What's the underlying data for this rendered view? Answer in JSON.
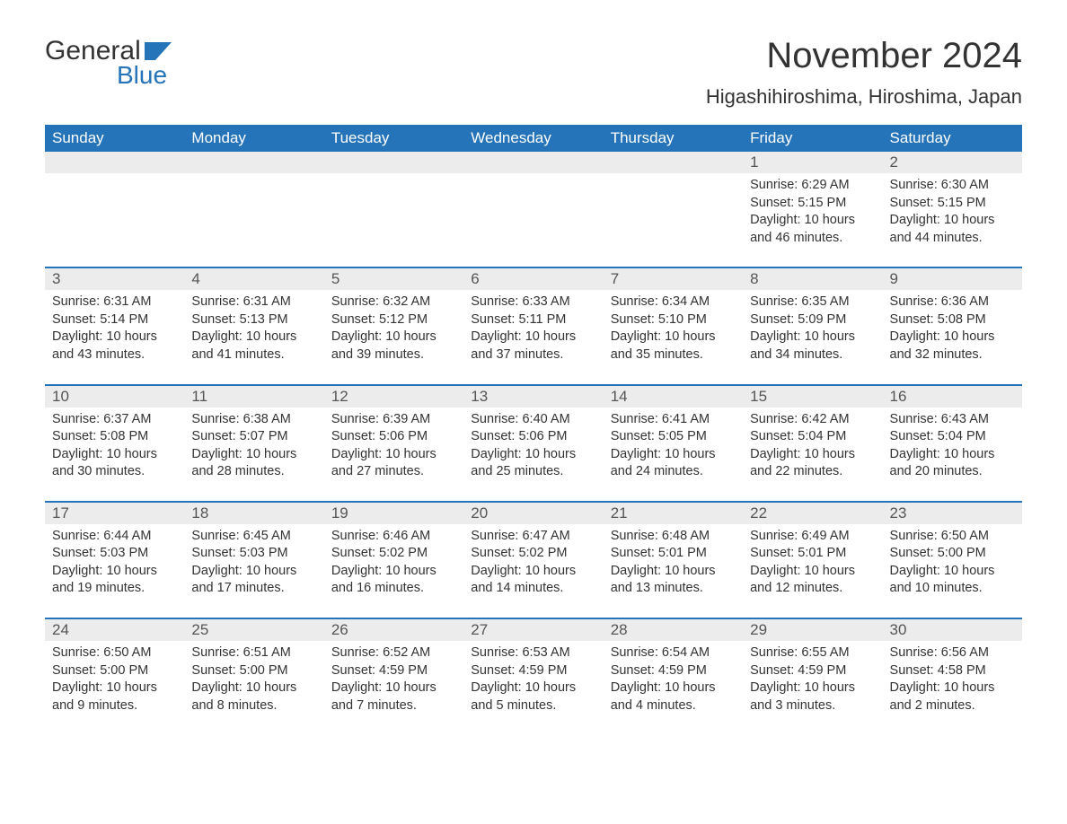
{
  "logo": {
    "text_top": "General",
    "text_bottom": "Blue",
    "flag_color": "#2573b8"
  },
  "title": "November 2024",
  "location": "Higashihiroshima, Hiroshima, Japan",
  "colors": {
    "header_bg": "#2573b8",
    "header_text": "#ffffff",
    "band_bg": "#ececec",
    "row_divider": "#2573b8",
    "body_text": "#333333",
    "background": "#ffffff"
  },
  "weekdays": [
    "Sunday",
    "Monday",
    "Tuesday",
    "Wednesday",
    "Thursday",
    "Friday",
    "Saturday"
  ],
  "weeks": [
    {
      "days": [
        {
          "blank": true
        },
        {
          "blank": true
        },
        {
          "blank": true
        },
        {
          "blank": true
        },
        {
          "blank": true
        },
        {
          "num": "1",
          "sunrise": "Sunrise: 6:29 AM",
          "sunset": "Sunset: 5:15 PM",
          "daylight": "Daylight: 10 hours and 46 minutes."
        },
        {
          "num": "2",
          "sunrise": "Sunrise: 6:30 AM",
          "sunset": "Sunset: 5:15 PM",
          "daylight": "Daylight: 10 hours and 44 minutes."
        }
      ]
    },
    {
      "days": [
        {
          "num": "3",
          "sunrise": "Sunrise: 6:31 AM",
          "sunset": "Sunset: 5:14 PM",
          "daylight": "Daylight: 10 hours and 43 minutes."
        },
        {
          "num": "4",
          "sunrise": "Sunrise: 6:31 AM",
          "sunset": "Sunset: 5:13 PM",
          "daylight": "Daylight: 10 hours and 41 minutes."
        },
        {
          "num": "5",
          "sunrise": "Sunrise: 6:32 AM",
          "sunset": "Sunset: 5:12 PM",
          "daylight": "Daylight: 10 hours and 39 minutes."
        },
        {
          "num": "6",
          "sunrise": "Sunrise: 6:33 AM",
          "sunset": "Sunset: 5:11 PM",
          "daylight": "Daylight: 10 hours and 37 minutes."
        },
        {
          "num": "7",
          "sunrise": "Sunrise: 6:34 AM",
          "sunset": "Sunset: 5:10 PM",
          "daylight": "Daylight: 10 hours and 35 minutes."
        },
        {
          "num": "8",
          "sunrise": "Sunrise: 6:35 AM",
          "sunset": "Sunset: 5:09 PM",
          "daylight": "Daylight: 10 hours and 34 minutes."
        },
        {
          "num": "9",
          "sunrise": "Sunrise: 6:36 AM",
          "sunset": "Sunset: 5:08 PM",
          "daylight": "Daylight: 10 hours and 32 minutes."
        }
      ]
    },
    {
      "days": [
        {
          "num": "10",
          "sunrise": "Sunrise: 6:37 AM",
          "sunset": "Sunset: 5:08 PM",
          "daylight": "Daylight: 10 hours and 30 minutes."
        },
        {
          "num": "11",
          "sunrise": "Sunrise: 6:38 AM",
          "sunset": "Sunset: 5:07 PM",
          "daylight": "Daylight: 10 hours and 28 minutes."
        },
        {
          "num": "12",
          "sunrise": "Sunrise: 6:39 AM",
          "sunset": "Sunset: 5:06 PM",
          "daylight": "Daylight: 10 hours and 27 minutes."
        },
        {
          "num": "13",
          "sunrise": "Sunrise: 6:40 AM",
          "sunset": "Sunset: 5:06 PM",
          "daylight": "Daylight: 10 hours and 25 minutes."
        },
        {
          "num": "14",
          "sunrise": "Sunrise: 6:41 AM",
          "sunset": "Sunset: 5:05 PM",
          "daylight": "Daylight: 10 hours and 24 minutes."
        },
        {
          "num": "15",
          "sunrise": "Sunrise: 6:42 AM",
          "sunset": "Sunset: 5:04 PM",
          "daylight": "Daylight: 10 hours and 22 minutes."
        },
        {
          "num": "16",
          "sunrise": "Sunrise: 6:43 AM",
          "sunset": "Sunset: 5:04 PM",
          "daylight": "Daylight: 10 hours and 20 minutes."
        }
      ]
    },
    {
      "days": [
        {
          "num": "17",
          "sunrise": "Sunrise: 6:44 AM",
          "sunset": "Sunset: 5:03 PM",
          "daylight": "Daylight: 10 hours and 19 minutes."
        },
        {
          "num": "18",
          "sunrise": "Sunrise: 6:45 AM",
          "sunset": "Sunset: 5:03 PM",
          "daylight": "Daylight: 10 hours and 17 minutes."
        },
        {
          "num": "19",
          "sunrise": "Sunrise: 6:46 AM",
          "sunset": "Sunset: 5:02 PM",
          "daylight": "Daylight: 10 hours and 16 minutes."
        },
        {
          "num": "20",
          "sunrise": "Sunrise: 6:47 AM",
          "sunset": "Sunset: 5:02 PM",
          "daylight": "Daylight: 10 hours and 14 minutes."
        },
        {
          "num": "21",
          "sunrise": "Sunrise: 6:48 AM",
          "sunset": "Sunset: 5:01 PM",
          "daylight": "Daylight: 10 hours and 13 minutes."
        },
        {
          "num": "22",
          "sunrise": "Sunrise: 6:49 AM",
          "sunset": "Sunset: 5:01 PM",
          "daylight": "Daylight: 10 hours and 12 minutes."
        },
        {
          "num": "23",
          "sunrise": "Sunrise: 6:50 AM",
          "sunset": "Sunset: 5:00 PM",
          "daylight": "Daylight: 10 hours and 10 minutes."
        }
      ]
    },
    {
      "days": [
        {
          "num": "24",
          "sunrise": "Sunrise: 6:50 AM",
          "sunset": "Sunset: 5:00 PM",
          "daylight": "Daylight: 10 hours and 9 minutes."
        },
        {
          "num": "25",
          "sunrise": "Sunrise: 6:51 AM",
          "sunset": "Sunset: 5:00 PM",
          "daylight": "Daylight: 10 hours and 8 minutes."
        },
        {
          "num": "26",
          "sunrise": "Sunrise: 6:52 AM",
          "sunset": "Sunset: 4:59 PM",
          "daylight": "Daylight: 10 hours and 7 minutes."
        },
        {
          "num": "27",
          "sunrise": "Sunrise: 6:53 AM",
          "sunset": "Sunset: 4:59 PM",
          "daylight": "Daylight: 10 hours and 5 minutes."
        },
        {
          "num": "28",
          "sunrise": "Sunrise: 6:54 AM",
          "sunset": "Sunset: 4:59 PM",
          "daylight": "Daylight: 10 hours and 4 minutes."
        },
        {
          "num": "29",
          "sunrise": "Sunrise: 6:55 AM",
          "sunset": "Sunset: 4:59 PM",
          "daylight": "Daylight: 10 hours and 3 minutes."
        },
        {
          "num": "30",
          "sunrise": "Sunrise: 6:56 AM",
          "sunset": "Sunset: 4:58 PM",
          "daylight": "Daylight: 10 hours and 2 minutes."
        }
      ]
    }
  ]
}
